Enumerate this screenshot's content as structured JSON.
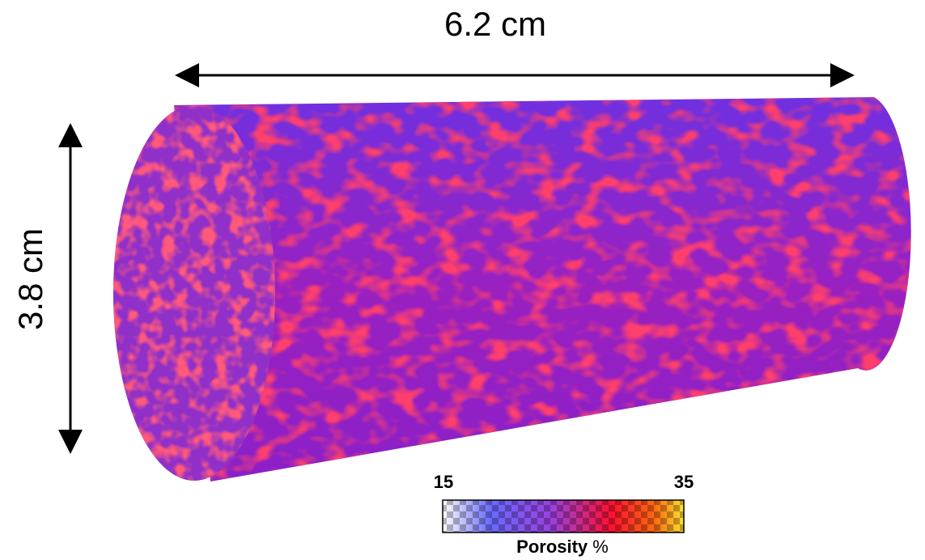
{
  "dimensions": {
    "length": "6.2 cm",
    "diameter": "3.8 cm"
  },
  "colorbar": {
    "min": 15,
    "max": 35,
    "label": "Porosity",
    "unit": "%"
  }
}
